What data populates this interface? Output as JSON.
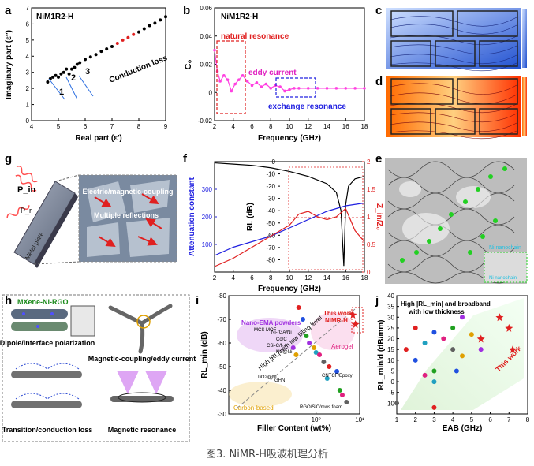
{
  "caption": "图3. NiMR-H吸波机理分析",
  "panels": {
    "a": {
      "letter": "a",
      "title": "NiM1R2-H",
      "xlabel": "Real part (ε′)",
      "ylabel": "Imaginary part (ε″)",
      "region_labels": [
        "1",
        "2",
        "3"
      ],
      "annotation": "Conduction loss"
    },
    "b": {
      "letter": "b",
      "title": "NiM1R2-H",
      "xlabel": "Frequency (GHz)",
      "ylabel": "C₀",
      "annotations": [
        "natural resonance",
        "eddy current",
        "exchange resonance"
      ]
    },
    "c": {
      "letter": "c"
    },
    "d": {
      "letter": "d"
    },
    "e": {
      "letter": "e",
      "labels": [
        "Ni nanochain",
        "Ni nanochain"
      ]
    },
    "f": {
      "letter": "f",
      "xlabel": "Frequency (GHz)",
      "ylabel_left": "Attenuation constant",
      "ylabel_mid": "RL (dB)",
      "ylabel_right": "Z_in/Z₀"
    },
    "g": {
      "letter": "g",
      "labels": [
        "P_in",
        "P_r",
        "Metal plate",
        "Electric/magnetic-coupling",
        "Multiple reflections"
      ]
    },
    "h": {
      "letter": "h",
      "labels": [
        "MXene-Ni-RGO",
        "Dipole/interface polarization",
        "Magnetic-coupling/eddy current",
        "Transition/conduction loss",
        "Magnetic resonance"
      ]
    },
    "i": {
      "letter": "i",
      "xlabel": "Filler Content (wt%)",
      "ylabel": "RL_min (dB)",
      "labels": [
        "This work",
        "NiMR-H",
        "Nano-EMA powders",
        "Aerogel",
        "Carbon-based",
        "High |RL| with low filling level",
        "CNTCF/Epoxy",
        "MCS MOF",
        "Ni-rGA/Ni",
        "Co/C",
        "CSi-C/f",
        "NC@Ni",
        "TiO2@Ni",
        "GHN",
        "RGO/SiC/mws foam"
      ]
    },
    "j": {
      "letter": "j",
      "xlabel": "EAB (GHz)",
      "ylabel": "RL_min/d (dB/mm)",
      "labels": [
        "High |RL_min| and broadband",
        "with low thickness",
        "This work"
      ]
    }
  },
  "chart_data": [
    {
      "type": "scatter",
      "panel": "a",
      "title": "NiM1R2-H",
      "xlabel": "Real part (ε′)",
      "ylabel": "Imaginary part (ε″)",
      "xlim": [
        4,
        9
      ],
      "ylim": [
        0,
        7
      ],
      "xticks": [
        4,
        5,
        6,
        7,
        8,
        9
      ],
      "yticks": [
        0,
        1,
        2,
        3,
        4,
        5,
        6,
        7
      ],
      "x": [
        4.6,
        4.7,
        4.8,
        4.9,
        5.0,
        5.1,
        5.2,
        5.3,
        5.4,
        5.5,
        5.6,
        5.7,
        5.8,
        6.0,
        6.2,
        6.4,
        6.6,
        6.8,
        7.0,
        7.2,
        7.4,
        7.6,
        7.8,
        8.0,
        8.2,
        8.4,
        8.6,
        8.8,
        9.0
      ],
      "y": [
        2.4,
        2.6,
        2.7,
        2.8,
        2.7,
        2.9,
        3.0,
        3.2,
        2.9,
        3.2,
        3.3,
        3.5,
        3.6,
        3.8,
        3.95,
        4.1,
        4.3,
        4.45,
        4.6,
        4.8,
        5.0,
        5.15,
        5.35,
        5.5,
        5.7,
        5.9,
        6.05,
        6.25,
        6.45
      ]
    },
    {
      "type": "line",
      "panel": "b",
      "title": "NiM1R2-H",
      "xlabel": "Frequency (GHz)",
      "ylabel": "C₀",
      "xlim": [
        2,
        18
      ],
      "ylim": [
        -0.02,
        0.06
      ],
      "xticks": [
        2,
        4,
        6,
        8,
        10,
        12,
        14,
        16,
        18
      ],
      "yticks": [
        -0.02,
        0.0,
        0.02,
        0.04,
        0.06
      ],
      "x": [
        2,
        2.3,
        2.6,
        3,
        3.4,
        3.8,
        4.2,
        4.6,
        5,
        5.5,
        6,
        6.5,
        7,
        7.5,
        8,
        8.5,
        9,
        9.5,
        10,
        10.5,
        11,
        12,
        13,
        14,
        15,
        16,
        17,
        18
      ],
      "y": [
        0.03,
        0.015,
        0.008,
        0.012,
        0.009,
        0.001,
        0.006,
        0.009,
        0.012,
        0.008,
        0.005,
        0.007,
        0.004,
        0.006,
        0.003,
        0.005,
        0.004,
        0.001,
        0.002,
        0.003,
        0.003,
        0.003,
        0.003,
        0.003,
        0.003,
        0.003,
        0.003,
        0.003
      ]
    },
    {
      "type": "line",
      "panel": "f",
      "xlabel": "Frequency (GHz)",
      "xlim": [
        2,
        18
      ],
      "xticks": [
        2,
        4,
        6,
        8,
        10,
        12,
        14,
        16,
        18
      ],
      "series": [
        {
          "name": "RL (dB)",
          "axis": "RL",
          "ylim": [
            -90,
            0
          ],
          "x": [
            2,
            4,
            6,
            8,
            10,
            12,
            14,
            15,
            15.5,
            15.8,
            16,
            16.3,
            17,
            18
          ],
          "y": [
            -1,
            -2,
            -3,
            -5,
            -8,
            -12,
            -18,
            -25,
            -40,
            -85,
            -35,
            -20,
            -14,
            -12
          ]
        },
        {
          "name": "Attenuation constant",
          "axis": "Attenuation constant",
          "ylim": [
            0,
            400
          ],
          "x": [
            2,
            4,
            6,
            8,
            10,
            12,
            14,
            16,
            18
          ],
          "y": [
            60,
            90,
            110,
            130,
            160,
            190,
            220,
            240,
            250
          ]
        },
        {
          "name": "Z_in/Z₀",
          "axis": "Z_in/Z₀",
          "ylim": [
            0,
            2
          ],
          "x": [
            2,
            4,
            6,
            8,
            10,
            11,
            12,
            13,
            14,
            15,
            16,
            17,
            18
          ],
          "y": [
            0.1,
            0.25,
            0.45,
            0.65,
            0.85,
            1.05,
            1.1,
            1.0,
            0.95,
            1.0,
            1.15,
            0.75,
            0.55
          ]
        }
      ],
      "yticks_left": [
        100,
        200,
        300
      ],
      "yticks_mid": [
        -80,
        -70,
        -60,
        -50,
        -40,
        -30,
        -20,
        -10,
        0
      ],
      "yticks_right": [
        0.0,
        0.5,
        1.0,
        1.5,
        2.0
      ]
    },
    {
      "type": "scatter",
      "panel": "i",
      "xlabel": "Filler Content (wt%)",
      "ylabel": "RL_min (dB)",
      "xscale": "log",
      "xlim": [
        0.01,
        10
      ],
      "ylim": [
        -30,
        -80
      ],
      "xtick_labels": [
        "10⁰",
        "10¹"
      ],
      "yticks": [
        -30,
        -40,
        -50,
        -60,
        -70,
        -80
      ],
      "x": [
        0.4,
        0.5,
        0.6,
        0.7,
        0.9,
        1.0,
        1.2,
        1.5,
        2.0,
        3.0,
        3.5,
        0.3,
        0.35,
        1.8,
        4.0,
        5.0,
        7.0,
        8.0
      ],
      "y": [
        -75,
        -70,
        -63,
        -60,
        -58,
        -56,
        -55,
        -52,
        -50,
        -48,
        -40,
        -58,
        -55,
        -45,
        -38,
        -35,
        -72,
        -68
      ]
    },
    {
      "type": "scatter",
      "panel": "j",
      "xlabel": "EAB (GHz)",
      "ylabel": "RL_min/d (dB/mm)",
      "xlim": [
        1,
        8
      ],
      "ylim": [
        -15,
        40
      ],
      "xticks": [
        1,
        2,
        3,
        4,
        5,
        6,
        7,
        8
      ],
      "yticks": [
        -10,
        -5,
        0,
        5,
        10,
        15,
        20,
        25,
        30,
        35,
        40
      ],
      "x": [
        2.0,
        3.0,
        4.0,
        4.5,
        5.0,
        2.5,
        3.5,
        4.0,
        1.5,
        2.0,
        3.0,
        5.5,
        4.5,
        3.0,
        2.5,
        1.0,
        3.0,
        4.2,
        5.5,
        6.5,
        7.0,
        7.2
      ],
      "y": [
        25,
        23,
        25,
        30,
        22,
        18,
        20,
        15,
        15,
        10,
        5,
        15,
        12,
        0,
        3,
        -10,
        -12,
        5,
        20,
        30,
        25,
        15
      ]
    }
  ]
}
